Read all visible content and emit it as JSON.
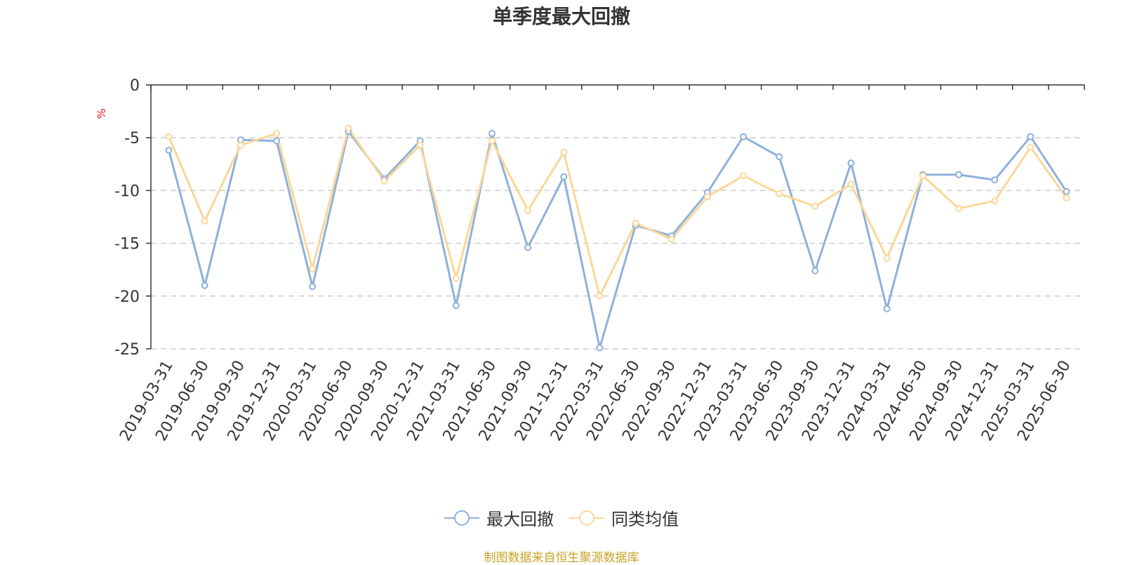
{
  "chart_data": {
    "type": "line",
    "title": "单季度最大回撤",
    "ylabel": "%",
    "ylim": [
      -25,
      0
    ],
    "yticks": [
      0,
      -5,
      -10,
      -15,
      -20,
      -25
    ],
    "grid": true,
    "legend_position": "bottom",
    "x": [
      "2019-03-31",
      "2019-06-30",
      "2019-09-30",
      "2019-12-31",
      "2020-03-31",
      "2020-06-30",
      "2020-09-30",
      "2020-12-31",
      "2021-03-31",
      "2021-06-30",
      "2021-09-30",
      "2021-12-31",
      "2022-03-31",
      "2022-06-30",
      "2022-09-30",
      "2022-12-31",
      "2023-03-31",
      "2023-06-30",
      "2023-09-30",
      "2023-12-31",
      "2024-03-31",
      "2024-06-30",
      "2024-09-30",
      "2024-12-31",
      "2025-03-31",
      "2025-06-30"
    ],
    "series": [
      {
        "name": "最大回撤",
        "color": "#8eb0dc",
        "values": [
          -6.2,
          -19.0,
          -5.2,
          -5.3,
          -19.1,
          -4.4,
          -8.9,
          -5.3,
          -20.9,
          -4.6,
          -15.4,
          -8.7,
          -24.9,
          -13.3,
          -14.3,
          -10.2,
          -4.9,
          -6.8,
          -17.6,
          -7.4,
          -21.2,
          -8.5,
          -8.5,
          -9.0,
          -4.9,
          -10.1
        ]
      },
      {
        "name": "同类均值",
        "color": "#fbd798",
        "values": [
          -4.9,
          -12.9,
          -5.7,
          -4.6,
          -17.4,
          -4.1,
          -9.1,
          -5.7,
          -18.3,
          -5.3,
          -11.9,
          -6.4,
          -20.0,
          -13.1,
          -14.6,
          -10.6,
          -8.6,
          -10.3,
          -11.5,
          -9.4,
          -16.4,
          -8.6,
          -11.7,
          -11.0,
          -5.9,
          -10.7
        ]
      }
    ]
  },
  "source_note": "制图数据来自恒生聚源数据库",
  "colors": {
    "title": "#333333",
    "axis": "#333333",
    "grid": "#cccccc",
    "unit": "#e02020",
    "source": "#c9a227"
  }
}
